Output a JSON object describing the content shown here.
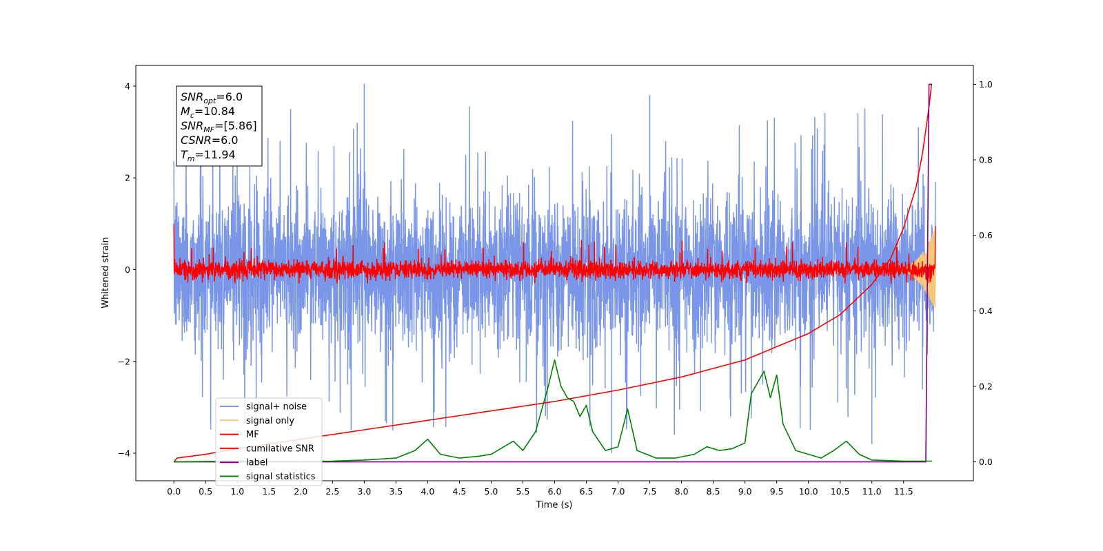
{
  "chart_data": {
    "type": "line",
    "title": "",
    "xlabel": "Time (s)",
    "ylabel": "Whitened strain",
    "xlim": [
      -0.6,
      12.6
    ],
    "ylim": [
      -4.6,
      4.45
    ],
    "ylim_right": [
      -0.05,
      1.05
    ],
    "x_ticks": [
      0.0,
      0.5,
      1.0,
      1.5,
      2.0,
      2.5,
      3.0,
      3.5,
      4.0,
      4.5,
      5.0,
      5.5,
      6.0,
      6.5,
      7.0,
      7.5,
      8.0,
      8.5,
      9.0,
      9.5,
      10.0,
      10.5,
      11.0,
      11.5
    ],
    "x_tick_labels": [
      "0.0",
      "0.5",
      "1.0",
      "1.5",
      "2.0",
      "2.5",
      "3.0",
      "3.5",
      "4.0",
      "4.5",
      "5.0",
      "5.5",
      "6.0",
      "6.5",
      "7.0",
      "7.5",
      "8.0",
      "8.5",
      "9.0",
      "9.5",
      "10.0",
      "10.5",
      "11.0",
      "11.5"
    ],
    "y_ticks": [
      -4,
      -2,
      0,
      2,
      4
    ],
    "y_tick_labels": [
      "−4",
      "−2",
      "0",
      "2",
      "4"
    ],
    "y_right_ticks": [
      0.0,
      0.2,
      0.4,
      0.6,
      0.8,
      1.0
    ],
    "y_right_tick_labels": [
      "0.0",
      "0.2",
      "0.4",
      "0.6",
      "0.8",
      "1.0"
    ],
    "grid": false,
    "legend_position": "lower-left",
    "annotation": {
      "lines": [
        {
          "base": "SNR",
          "sub": "opt",
          "rest": "=6.0"
        },
        {
          "base": "M",
          "sub": "c",
          "rest": "=10.84"
        },
        {
          "base": "SNR",
          "sub": "MF",
          "rest": "=[5.86]"
        },
        {
          "base": "CSNR",
          "sub": "",
          "rest": "=6.0"
        },
        {
          "base": "T",
          "sub": "m",
          "rest": "=11.94"
        }
      ]
    },
    "series": [
      {
        "name": "signal+ noise",
        "color": "#7a96e8",
        "axis": "left",
        "kind": "noise",
        "x_range": [
          0.0,
          12.0
        ],
        "std": 1.0,
        "peak_y": [
          4.05,
          -4.0
        ],
        "note_peaks": [
          [
            3.0,
            4.05
          ],
          [
            7.5,
            3.8
          ],
          [
            3.35,
            -3.35
          ],
          [
            6.9,
            -4.0
          ],
          [
            11.0,
            -3.8
          ]
        ]
      },
      {
        "name": "signal only",
        "color": "#f5c77a",
        "axis": "left",
        "kind": "chirp",
        "x_range": [
          11.3,
          12.0
        ],
        "amplitude_end": 0.9
      },
      {
        "name": "MF",
        "color": "#ff0000",
        "axis": "left",
        "kind": "noise",
        "x_range": [
          0.0,
          12.0
        ],
        "std": 0.12,
        "peak_y": [
          1.0,
          -0.3
        ]
      },
      {
        "name": "cumilative SNR",
        "color": "#ff0000",
        "axis": "right",
        "x": [
          0.0,
          0.05,
          0.5,
          1.0,
          2.0,
          3.0,
          4.0,
          5.0,
          6.0,
          7.0,
          8.0,
          9.0,
          10.0,
          10.5,
          11.0,
          11.3,
          11.5,
          11.7,
          11.8,
          11.9,
          11.94,
          11.95
        ],
        "values": [
          0.0,
          0.01,
          0.02,
          0.035,
          0.06,
          0.085,
          0.11,
          0.135,
          0.16,
          0.19,
          0.225,
          0.27,
          0.34,
          0.39,
          0.47,
          0.54,
          0.62,
          0.73,
          0.82,
          0.94,
          1.0,
          1.0
        ]
      },
      {
        "name": "label",
        "color": "#800080",
        "axis": "right",
        "x": [
          0.0,
          11.85,
          11.9,
          11.95
        ],
        "values": [
          0.0,
          0.0,
          1.0,
          1.0
        ]
      },
      {
        "name": "signal statistics",
        "color": "#008000",
        "axis": "right",
        "x": [
          0.0,
          0.5,
          1.0,
          2.0,
          2.5,
          3.0,
          3.5,
          3.8,
          4.0,
          4.2,
          4.5,
          4.8,
          5.0,
          5.2,
          5.35,
          5.5,
          5.7,
          5.9,
          6.0,
          6.1,
          6.2,
          6.3,
          6.4,
          6.5,
          6.6,
          6.8,
          7.0,
          7.15,
          7.3,
          7.6,
          7.9,
          8.2,
          8.4,
          8.6,
          8.8,
          9.0,
          9.1,
          9.2,
          9.3,
          9.4,
          9.5,
          9.6,
          9.8,
          10.0,
          10.2,
          10.4,
          10.6,
          10.8,
          11.0,
          11.5,
          11.85,
          11.95
        ],
        "values": [
          0.0,
          0.001,
          0.002,
          0.001,
          0.002,
          0.005,
          0.01,
          0.03,
          0.06,
          0.02,
          0.01,
          0.015,
          0.02,
          0.04,
          0.055,
          0.03,
          0.08,
          0.2,
          0.27,
          0.2,
          0.17,
          0.16,
          0.12,
          0.15,
          0.08,
          0.03,
          0.04,
          0.14,
          0.03,
          0.01,
          0.01,
          0.02,
          0.04,
          0.03,
          0.035,
          0.05,
          0.18,
          0.21,
          0.24,
          0.17,
          0.23,
          0.1,
          0.03,
          0.02,
          0.01,
          0.03,
          0.055,
          0.02,
          0.005,
          0.002,
          0.002,
          0.002
        ]
      }
    ]
  }
}
